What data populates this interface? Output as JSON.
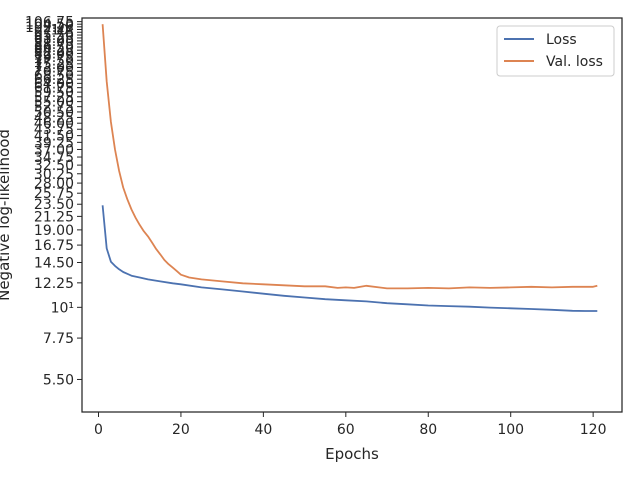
{
  "chart_data": {
    "type": "line",
    "xlabel": "Epochs",
    "ylabel": "Negative log-likelihood",
    "yscale": "log",
    "xlim": [
      -4,
      127
    ],
    "ylim": [
      4.2,
      110
    ],
    "x_ticks": [
      0,
      20,
      40,
      60,
      80,
      100,
      120
    ],
    "x_tick_labels": [
      "0",
      "20",
      "40",
      "60",
      "80",
      "100",
      "120"
    ],
    "y_ticks": [
      5.5,
      7.75,
      10,
      12.25,
      14.5,
      16.75,
      19,
      21.25,
      23.5,
      25.75,
      28,
      30.25,
      32.5,
      34.75,
      37,
      39.25,
      41.5,
      43.75,
      46,
      48.25,
      50.5,
      52.75,
      55,
      57.25,
      59.5,
      61.75,
      64,
      66.25,
      68.5,
      70.75,
      73,
      75.25,
      77.5,
      79.75,
      82,
      84.25,
      86.5,
      88.75,
      91,
      93.25,
      95.5,
      97.75,
      100,
      102.25,
      104.5,
      106.75
    ],
    "y_tick_labels": [
      "5.50",
      "7.75",
      "10¹",
      "12.25",
      "14.50",
      "16.75",
      "19.00",
      "21.25",
      "23.50",
      "25.75",
      "28.00",
      "30.25",
      "32.50",
      "34.75",
      "37.00",
      "39.25",
      "41.50",
      "43.75",
      "46.00",
      "48.25",
      "50.50",
      "52.75",
      "55.00",
      "57.25",
      "59.50",
      "61.75",
      "64.00",
      "66.25",
      "68.50",
      "70.75",
      "73.00",
      "75.25",
      "77.50",
      "79.75",
      "82.00",
      "84.25",
      "86.50",
      "88.75",
      "91.00",
      "93.25",
      "95.50",
      "97.75",
      "10²",
      "102.25",
      "104.50",
      "106.75"
    ],
    "legend": {
      "position": "top-right"
    },
    "grid": false,
    "series": [
      {
        "name": "Loss",
        "color": "#4c72b0",
        "x": [
          1,
          2,
          3,
          4,
          5,
          6,
          7,
          8,
          10,
          12,
          15,
          18,
          20,
          25,
          30,
          35,
          40,
          45,
          50,
          55,
          60,
          65,
          70,
          75,
          80,
          85,
          90,
          95,
          100,
          105,
          110,
          115,
          118,
          121
        ],
        "y": [
          23.3,
          16.3,
          14.6,
          14.1,
          13.7,
          13.4,
          13.2,
          13.0,
          12.8,
          12.6,
          12.4,
          12.2,
          12.1,
          11.8,
          11.6,
          11.4,
          11.2,
          11.0,
          10.85,
          10.7,
          10.6,
          10.5,
          10.35,
          10.25,
          10.15,
          10.1,
          10.05,
          9.98,
          9.92,
          9.86,
          9.8,
          9.72,
          9.7,
          9.7
        ]
      },
      {
        "name": "Val. loss",
        "color": "#dd8452",
        "x": [
          1,
          2,
          3,
          4,
          5,
          6,
          7,
          8,
          9,
          10,
          11,
          12,
          13,
          14,
          15,
          16,
          17,
          18,
          19,
          20,
          22,
          25,
          30,
          35,
          40,
          45,
          50,
          55,
          58,
          60,
          62,
          65,
          70,
          75,
          80,
          85,
          90,
          95,
          100,
          105,
          110,
          115,
          120,
          121
        ],
        "y": [
          104.5,
          65.0,
          46.5,
          37.0,
          31.0,
          27.0,
          24.5,
          22.5,
          21.0,
          19.8,
          18.8,
          18.0,
          17.1,
          16.2,
          15.5,
          14.8,
          14.3,
          13.9,
          13.5,
          13.1,
          12.8,
          12.6,
          12.4,
          12.2,
          12.1,
          12.0,
          11.9,
          11.9,
          11.75,
          11.8,
          11.75,
          11.95,
          11.7,
          11.7,
          11.75,
          11.7,
          11.8,
          11.75,
          11.8,
          11.85,
          11.8,
          11.85,
          11.85,
          11.95
        ]
      }
    ]
  }
}
